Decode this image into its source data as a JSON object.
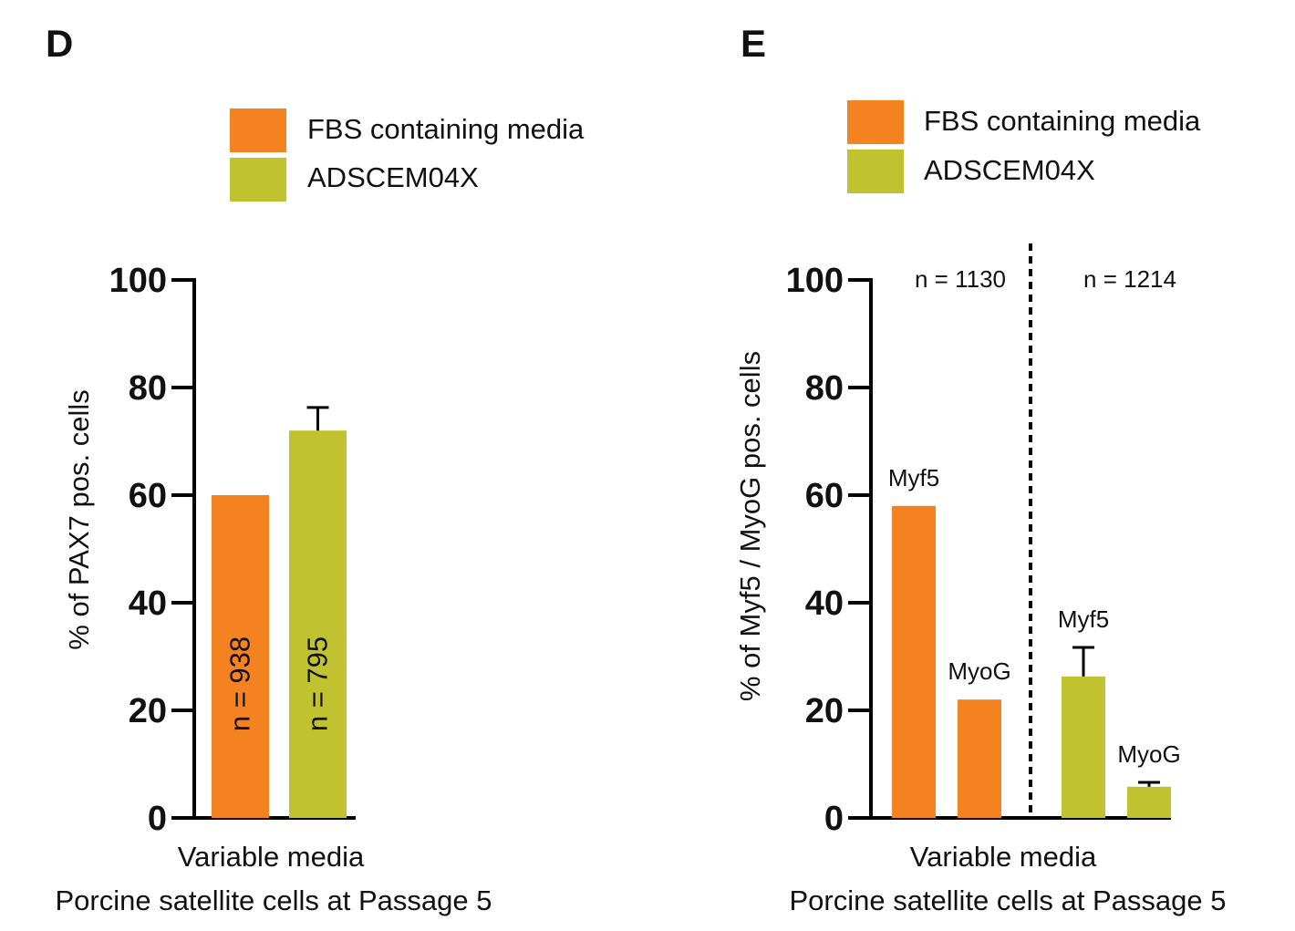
{
  "colors": {
    "fbs": "#F58220",
    "adscem": "#C0C22F",
    "axis": "#000000"
  },
  "chart_data": [
    {
      "type": "bar",
      "panel_label": "D",
      "ylabel": "% of PAX7 pos. cells",
      "xlabel": "Variable media",
      "caption": "Porcine satellite cells at Passage 5",
      "ylim": [
        0,
        100
      ],
      "yticks": [
        "0",
        "20",
        "40",
        "60",
        "80",
        "100"
      ],
      "legend": [
        "FBS containing media",
        "ADSCEM04X"
      ],
      "legend_position": "top",
      "grid": false,
      "bars": [
        {
          "series": "FBS containing media",
          "value": 60,
          "error_upper": null,
          "n_label": "n = 938"
        },
        {
          "series": "ADSCEM04X",
          "value": 72,
          "error_upper": 76.3,
          "n_label": "n = 795"
        }
      ]
    },
    {
      "type": "bar",
      "panel_label": "E",
      "ylabel": "% of Myf5 / MyoG pos. cells",
      "xlabel": "Variable media",
      "caption": "Porcine satellite cells at Passage 5",
      "ylim": [
        0,
        100
      ],
      "yticks": [
        "0",
        "20",
        "40",
        "60",
        "80",
        "100"
      ],
      "legend": [
        "FBS containing media",
        "ADSCEM04X"
      ],
      "legend_position": "top",
      "grid": false,
      "group_labels": [
        "n = 1130",
        "n = 1214"
      ],
      "bars": [
        {
          "series": "FBS containing media",
          "marker": "Myf5",
          "value": 58,
          "error_upper": null
        },
        {
          "series": "FBS containing media",
          "marker": "MyoG",
          "value": 22,
          "error_upper": null
        },
        {
          "series": "ADSCEM04X",
          "marker": "Myf5",
          "value": 26.3,
          "error_upper": 31.7
        },
        {
          "series": "ADSCEM04X",
          "marker": "MyoG",
          "value": 5.8,
          "error_upper": 6.6
        }
      ]
    }
  ]
}
